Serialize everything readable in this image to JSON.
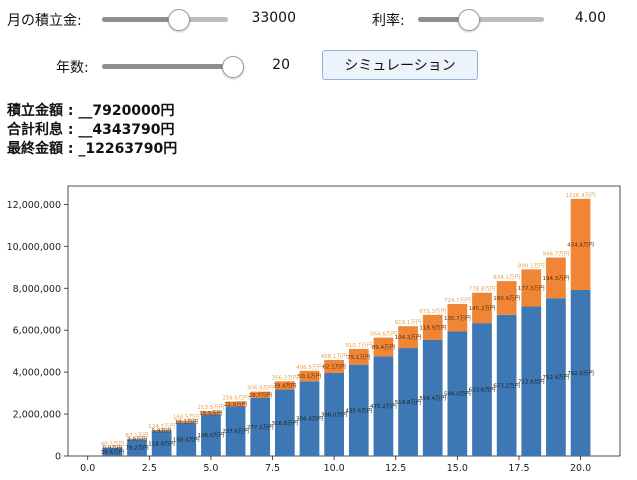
{
  "controls": {
    "monthly": {
      "label": "月の積立金:",
      "value": "33000",
      "fraction": 0.6
    },
    "rate": {
      "label": "利率:",
      "value": "4.00",
      "fraction": 0.4
    },
    "years": {
      "label": "年数:",
      "value": "20",
      "fraction": 1.0
    },
    "simulate_button": "シミュレーション"
  },
  "results": {
    "total_deposit": "積立金額 : __7920000円",
    "total_interest": "合計利息 : __4343790円",
    "final_amount": "最終金額 : _12263790円"
  },
  "colors": {
    "deposit": "#3d77b4",
    "interest": "#ef8535",
    "label_deposit": "#222222",
    "label_interest": "#5a3010",
    "label_total": "#e8a050"
  },
  "chart_data": {
    "type": "bar",
    "stacked": true,
    "x": [
      1,
      2,
      3,
      4,
      5,
      6,
      7,
      8,
      9,
      10,
      11,
      12,
      13,
      14,
      15,
      16,
      17,
      18,
      19,
      20
    ],
    "series": [
      {
        "values": [
          396000,
          792000,
          1188000,
          1584000,
          1980000,
          2376000,
          2772000,
          3168000,
          3564000,
          3960000,
          4356000,
          4752000,
          5148000,
          5544000,
          5940000,
          6336000,
          6732000,
          7128000,
          7524000,
          7920000
        ],
        "labels": [
          "39.6万円",
          "79.2万円",
          "118.8万円",
          "158.4万円",
          "198.0万円",
          "237.6万円",
          "277.2万円",
          "316.8万円",
          "356.4万円",
          "396.0万円",
          "435.6万円",
          "475.2万円",
          "514.8万円",
          "554.4万円",
          "594.0万円",
          "633.6万円",
          "673.2万円",
          "712.8万円",
          "752.4万円",
          "792.0万円"
        ]
      },
      {
        "values": [
          9000,
          29000,
          59000,
          101000,
          155000,
          220000,
          297000,
          394000,
          501000,
          621000,
          751000,
          894000,
          1043000,
          1189000,
          1307000,
          1452000,
          1609000,
          1773000,
          1943000,
          4343790
        ],
        "labels": [
          "0.9万円",
          "2.9万円",
          "5.9万円",
          "10.1万円",
          "15.5万円",
          "22.0万円",
          "29.7万円",
          "39.4万円",
          "50.1万円",
          "62.1万円",
          "75.1万円",
          "89.4万円",
          "104.3万円",
          "118.9万円",
          "130.7万円",
          "145.2万円",
          "160.9万円",
          "177.3万円",
          "194.3万円",
          "434.4万円"
        ]
      }
    ],
    "total_labels": [
      "40.5万円",
      "82.1万円",
      "124.7万円",
      "168.5万円",
      "213.5万円",
      "259.6万円",
      "306.9万円",
      "356.2万円",
      "406.5万円",
      "458.1万円",
      "510.7万円",
      "564.6万円",
      "619.1万円",
      "673.3万円",
      "724.7万円",
      "778.8万円",
      "834.1万円",
      "890.1万円",
      "946.7万円",
      "1226.4万円"
    ],
    "xticks": [
      "0.0",
      "2.5",
      "5.0",
      "7.5",
      "10.0",
      "12.5",
      "15.0",
      "17.5",
      "20.0"
    ],
    "yticks": [
      "0",
      "2,000,000",
      "4,000,000",
      "6,000,000",
      "8,000,000",
      "10,000,000",
      "12,000,000"
    ],
    "xlim": [
      -0.8,
      21.6
    ],
    "ylim": [
      0,
      12877000
    ]
  }
}
